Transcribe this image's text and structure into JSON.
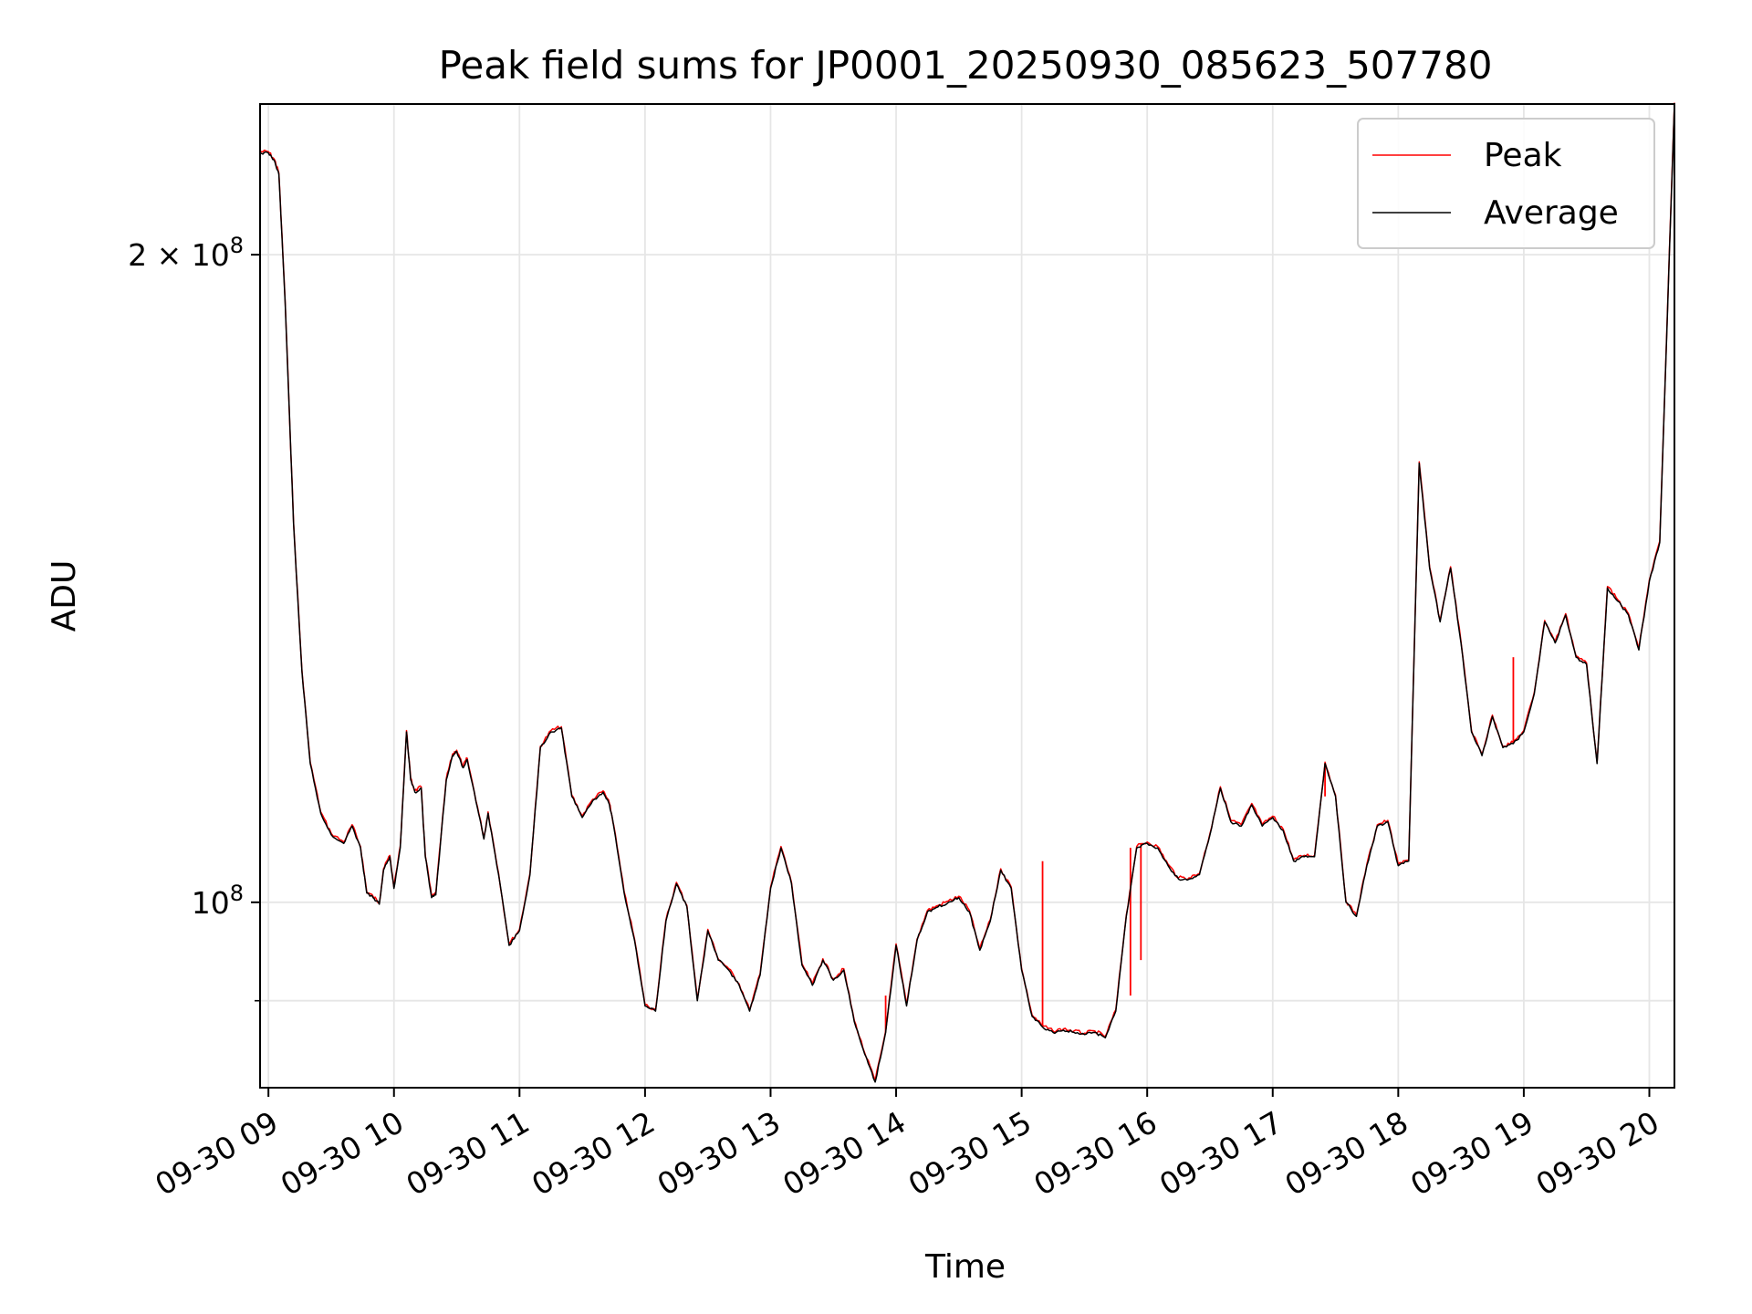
{
  "chart_data": {
    "type": "line",
    "title": "Peak field sums for JP0001_20250930_085623_507780",
    "xlabel": "Time",
    "ylabel": "ADU",
    "y_scale": "log",
    "xlim": [
      "2025-09-30 08:56",
      "2025-09-30 20:12"
    ],
    "ylim": [
      82000000,
      235000000
    ],
    "x_ticks": [
      "09-30 09",
      "09-30 10",
      "09-30 11",
      "09-30 12",
      "09-30 13",
      "09-30 14",
      "09-30 15",
      "09-30 16",
      "09-30 17",
      "09-30 18",
      "09-30 19",
      "09-30 20"
    ],
    "y_ticks": [
      {
        "value": 200000000,
        "label_mantissa": "2 × 10",
        "label_exp": "8"
      },
      {
        "value": 100000000,
        "label_mantissa": "10",
        "label_exp": "8"
      }
    ],
    "y_minor_ticks": [
      90000000
    ],
    "grid": true,
    "legend_position": "upper right",
    "series": [
      {
        "name": "Peak",
        "color": "#ff0000"
      },
      {
        "name": "Average",
        "color": "#000000"
      }
    ],
    "x": [
      "08:56",
      "09:00",
      "09:03",
      "09:05",
      "09:08",
      "09:12",
      "09:16",
      "09:20",
      "09:25",
      "09:30",
      "09:36",
      "09:40",
      "09:44",
      "09:47",
      "09:50",
      "09:53",
      "09:55",
      "09:58",
      "10:00",
      "10:03",
      "10:06",
      "10:08",
      "10:10",
      "10:13",
      "10:15",
      "10:18",
      "10:20",
      "10:25",
      "10:28",
      "10:30",
      "10:33",
      "10:35",
      "10:40",
      "10:43",
      "10:45",
      "10:50",
      "10:55",
      "11:00",
      "11:05",
      "11:10",
      "11:15",
      "11:20",
      "11:25",
      "11:30",
      "11:35",
      "11:40",
      "11:43",
      "11:45",
      "11:50",
      "11:55",
      "12:00",
      "12:05",
      "12:10",
      "12:15",
      "12:20",
      "12:25",
      "12:30",
      "12:35",
      "12:40",
      "12:45",
      "12:50",
      "12:55",
      "13:00",
      "13:05",
      "13:10",
      "13:15",
      "13:20",
      "13:25",
      "13:30",
      "13:35",
      "13:40",
      "13:45",
      "13:50",
      "13:55",
      "14:00",
      "14:05",
      "14:10",
      "14:15",
      "14:20",
      "14:25",
      "14:30",
      "14:35",
      "14:40",
      "14:45",
      "14:50",
      "14:55",
      "15:00",
      "15:05",
      "15:10",
      "15:15",
      "15:20",
      "15:25",
      "15:30",
      "15:35",
      "15:40",
      "15:45",
      "15:50",
      "15:55",
      "16:00",
      "16:05",
      "16:10",
      "16:15",
      "16:20",
      "16:25",
      "16:30",
      "16:35",
      "16:40",
      "16:45",
      "16:50",
      "16:55",
      "17:00",
      "17:05",
      "17:10",
      "17:15",
      "17:20",
      "17:25",
      "17:30",
      "17:35",
      "17:40",
      "17:45",
      "17:50",
      "17:55",
      "18:00",
      "18:05",
      "18:10",
      "18:15",
      "18:20",
      "18:25",
      "18:30",
      "18:35",
      "18:40",
      "18:45",
      "18:50",
      "18:55",
      "19:00",
      "19:05",
      "19:10",
      "19:15",
      "19:20",
      "19:25",
      "19:30",
      "19:35",
      "19:40",
      "19:45",
      "19:50",
      "19:55",
      "20:00",
      "20:05",
      "20:12"
    ],
    "average": [
      223000000,
      223000000,
      221000000,
      218000000,
      190000000,
      150000000,
      128000000,
      116000000,
      110000000,
      107500000,
      106500000,
      108500000,
      106000000,
      101000000,
      100500000,
      99800000,
      103500000,
      105000000,
      101500000,
      106000000,
      120000000,
      114000000,
      112500000,
      113000000,
      105000000,
      100500000,
      100800000,
      114000000,
      117000000,
      117500000,
      115500000,
      116500000,
      110500000,
      107000000,
      110000000,
      103000000,
      95500000,
      97000000,
      103000000,
      118000000,
      120000000,
      120500000,
      112000000,
      109500000,
      111500000,
      112500000,
      111000000,
      108500000,
      101000000,
      96000000,
      89500000,
      89000000,
      98000000,
      102000000,
      99500000,
      90000000,
      97000000,
      94000000,
      93000000,
      91500000,
      89000000,
      92500000,
      101500000,
      106000000,
      102000000,
      93500000,
      91500000,
      94000000,
      92000000,
      93000000,
      88000000,
      85000000,
      82500000,
      87000000,
      95500000,
      89500000,
      96000000,
      99000000,
      99500000,
      100000000,
      100500000,
      99000000,
      95000000,
      98000000,
      103500000,
      101500000,
      93000000,
      88500000,
      87500000,
      87000000,
      87200000,
      87000000,
      86800000,
      87000000,
      86500000,
      89000000,
      98500000,
      106000000,
      106500000,
      106000000,
      104000000,
      102500000,
      102500000,
      103000000,
      107500000,
      113000000,
      109000000,
      108500000,
      111000000,
      108500000,
      109500000,
      108000000,
      104500000,
      105000000,
      105000000,
      116000000,
      112000000,
      100000000,
      98500000,
      104000000,
      108500000,
      109000000,
      104000000,
      104500000,
      160000000,
      143000000,
      135000000,
      143000000,
      132000000,
      120000000,
      117000000,
      122000000,
      118000000,
      118500000,
      120000000,
      125000000,
      135000000,
      132000000,
      136000000,
      130000000,
      129000000,
      116000000,
      140000000,
      138000000,
      136000000,
      131000000,
      141000000,
      147000000,
      235000000
    ],
    "peak_spikes": [
      {
        "x": "13:55",
        "value": 90500000
      },
      {
        "x": "15:10",
        "value": 104500000
      },
      {
        "x": "15:52",
        "value": 90500000
      },
      {
        "x": "15:57",
        "value": 94000000
      },
      {
        "x": "17:25",
        "value": 112000000
      },
      {
        "x": "18:55",
        "value": 130000000
      }
    ]
  }
}
